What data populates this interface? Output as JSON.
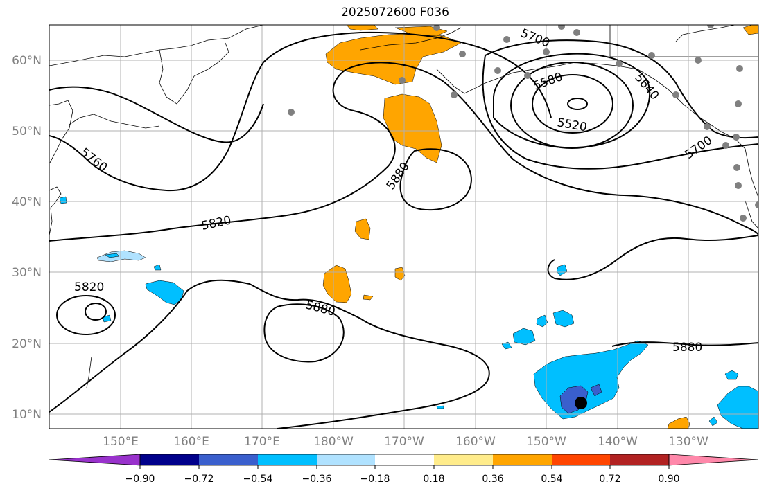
{
  "title": "2025072600 F036",
  "lat_labels": [
    "60°N",
    "50°N",
    "40°N",
    "30°N",
    "20°N",
    "10°N"
  ],
  "lon_labels": [
    "150°E",
    "160°E",
    "170°E",
    "180°W",
    "170°W",
    "160°W",
    "150°W",
    "140°W",
    "130°W"
  ],
  "colorbar": {
    "tick_labels": [
      "−0.90",
      "−0.72",
      "−0.54",
      "−0.36",
      "−0.18",
      "0.18",
      "0.36",
      "0.54",
      "0.72",
      "0.90"
    ],
    "colors": [
      "#9932cc",
      "#00008b",
      "#3a5fcd",
      "#00bfff",
      "#b0e2ff",
      "#ffffff",
      "#ffec8b",
      "#ffa500",
      "#ff4500",
      "#b22222",
      "#ff88aa"
    ]
  },
  "contour_labels": [
    {
      "text": "5700"
    },
    {
      "text": "5580"
    },
    {
      "text": "5640"
    },
    {
      "text": "5520"
    },
    {
      "text": "5700"
    },
    {
      "text": "5760"
    },
    {
      "text": "5880"
    },
    {
      "text": "5820"
    },
    {
      "text": "5820"
    },
    {
      "text": "5880"
    },
    {
      "text": "5880"
    }
  ],
  "colors": {
    "positive_fill": "#ffa500",
    "negative_fill": "#00bfff",
    "strong_negative_fill": "#3a5fcd",
    "light_negative_fill": "#b0e2ff",
    "station_marker": "#808080",
    "grid": "#b0b0b0"
  }
}
